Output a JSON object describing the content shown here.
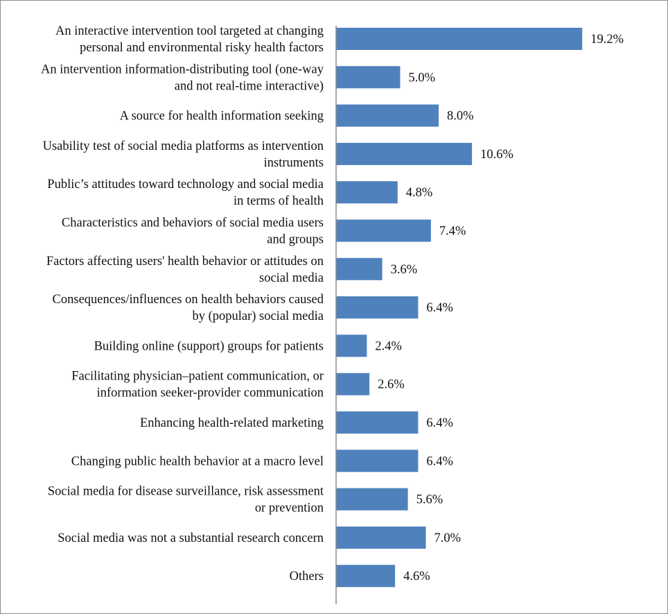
{
  "chart_data": {
    "type": "bar",
    "orientation": "horizontal",
    "categories": [
      [
        "An interactive intervention tool targeted at changing",
        "personal and environmental risky health factors"
      ],
      [
        "An intervention information-distributing tool (one-way",
        "and not real-time interactive)"
      ],
      [
        "A source for health information seeking"
      ],
      [
        "Usability test of social media platforms as intervention",
        "instruments"
      ],
      [
        "Public’s attitudes toward technology and social media",
        "in terms of health"
      ],
      [
        "Characteristics and behaviors of social media users",
        "and groups"
      ],
      [
        "Factors affecting users' health behavior or attitudes on",
        "social media"
      ],
      [
        "Consequences/influences on health behaviors caused",
        "by (popular) social media"
      ],
      [
        "Building online (support) groups for patients"
      ],
      [
        "Facilitating physician–patient communication, or",
        "information seeker-provider communication"
      ],
      [
        "Enhancing health-related marketing"
      ],
      [
        "Changing public health behavior at a macro level"
      ],
      [
        "Social media for disease surveillance, risk assessment",
        "or prevention"
      ],
      [
        "Social media was not a substantial research concern"
      ],
      [
        "Others"
      ]
    ],
    "values": [
      19.2,
      5.0,
      8.0,
      10.6,
      4.8,
      7.4,
      3.6,
      6.4,
      2.4,
      2.6,
      6.4,
      6.4,
      5.6,
      7.0,
      4.6
    ],
    "data_labels": [
      "19.2%",
      "5.0%",
      "8.0%",
      "10.6%",
      "4.8%",
      "7.4%",
      "3.6%",
      "6.4%",
      "2.4%",
      "2.6%",
      "6.4%",
      "6.4%",
      "5.6%",
      "7.0%",
      "4.6%"
    ],
    "xlim": [
      0,
      25
    ],
    "grid": false,
    "legend": "none",
    "bar_color": "#4f81bd",
    "axis_color": "#8c8c8c",
    "title": "",
    "xlabel": "",
    "ylabel": ""
  }
}
